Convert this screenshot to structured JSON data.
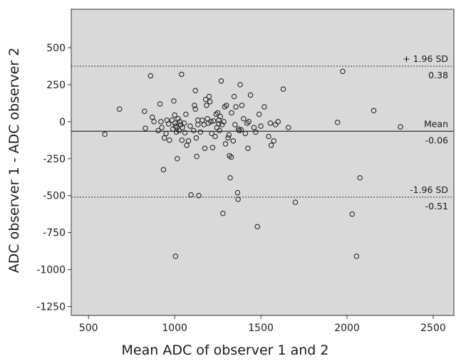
{
  "chart_data": {
    "type": "scatter",
    "title": "",
    "xlabel": "Mean ADC of observer 1 and 2",
    "ylabel": "ADC observer 1 - ADC observer 2",
    "xlim": [
      400,
      2620
    ],
    "ylim": [
      -1310,
      760
    ],
    "x_ticks": [
      500,
      1000,
      1500,
      2000,
      2500
    ],
    "y_ticks": [
      500,
      250,
      0,
      -250,
      -500,
      -750,
      -1000,
      -1250
    ],
    "grid": false,
    "background": "#d9d9d9",
    "reference_lines": [
      {
        "name": "+ 1.96 SD",
        "value_label": "0.38",
        "y": 375,
        "style": "dotted"
      },
      {
        "name": "Mean",
        "value_label": "-0.06",
        "y": -65,
        "style": "solid"
      },
      {
        "name": "-1.96 SD",
        "value_label": "-0.51",
        "y": -510,
        "style": "dotted"
      }
    ],
    "points": [
      {
        "x": 595,
        "y": -85
      },
      {
        "x": 680,
        "y": 85
      },
      {
        "x": 825,
        "y": 70
      },
      {
        "x": 830,
        "y": -45
      },
      {
        "x": 860,
        "y": 310
      },
      {
        "x": 870,
        "y": 30
      },
      {
        "x": 880,
        "y": 0
      },
      {
        "x": 905,
        "y": -60
      },
      {
        "x": 915,
        "y": 120
      },
      {
        "x": 920,
        "y": 0
      },
      {
        "x": 925,
        "y": -40
      },
      {
        "x": 935,
        "y": -325
      },
      {
        "x": 940,
        "y": -110
      },
      {
        "x": 950,
        "y": -80
      },
      {
        "x": 955,
        "y": 10
      },
      {
        "x": 965,
        "y": -15
      },
      {
        "x": 970,
        "y": -125
      },
      {
        "x": 985,
        "y": 10
      },
      {
        "x": 990,
        "y": -50
      },
      {
        "x": 995,
        "y": 140
      },
      {
        "x": 1000,
        "y": 45
      },
      {
        "x": 1002,
        "y": -10
      },
      {
        "x": 1005,
        "y": -30
      },
      {
        "x": 1010,
        "y": -70
      },
      {
        "x": 1012,
        "y": -40
      },
      {
        "x": 1015,
        "y": -250
      },
      {
        "x": 1020,
        "y": 20
      },
      {
        "x": 1025,
        "y": -60
      },
      {
        "x": 1030,
        "y": 0
      },
      {
        "x": 1035,
        "y": -20
      },
      {
        "x": 1040,
        "y": 320
      },
      {
        "x": 1042,
        "y": -125
      },
      {
        "x": 1045,
        "y": -40
      },
      {
        "x": 1055,
        "y": -10
      },
      {
        "x": 1060,
        "y": -75
      },
      {
        "x": 1065,
        "y": 50
      },
      {
        "x": 1070,
        "y": -160
      },
      {
        "x": 1080,
        "y": -130
      },
      {
        "x": 1090,
        "y": -30
      },
      {
        "x": 1095,
        "y": -495
      },
      {
        "x": 1110,
        "y": -60
      },
      {
        "x": 1115,
        "y": 110
      },
      {
        "x": 1120,
        "y": 210
      },
      {
        "x": 1120,
        "y": 85
      },
      {
        "x": 1125,
        "y": -110
      },
      {
        "x": 1128,
        "y": -235
      },
      {
        "x": 1135,
        "y": 10
      },
      {
        "x": 1140,
        "y": -500
      },
      {
        "x": 1150,
        "y": -70
      },
      {
        "x": 1160,
        "y": 10
      },
      {
        "x": 1170,
        "y": -20
      },
      {
        "x": 1175,
        "y": -180
      },
      {
        "x": 1180,
        "y": 150
      },
      {
        "x": 1185,
        "y": 110
      },
      {
        "x": 1190,
        "y": 20
      },
      {
        "x": 1195,
        "y": -10
      },
      {
        "x": 1200,
        "y": 170
      },
      {
        "x": 1205,
        "y": 135
      },
      {
        "x": 1210,
        "y": 0
      },
      {
        "x": 1215,
        "y": -80
      },
      {
        "x": 1220,
        "y": -175
      },
      {
        "x": 1225,
        "y": 5
      },
      {
        "x": 1235,
        "y": -100
      },
      {
        "x": 1240,
        "y": 50
      },
      {
        "x": 1245,
        "y": -40
      },
      {
        "x": 1250,
        "y": 60
      },
      {
        "x": 1255,
        "y": 10
      },
      {
        "x": 1260,
        "y": -60
      },
      {
        "x": 1265,
        "y": 35
      },
      {
        "x": 1270,
        "y": 275
      },
      {
        "x": 1275,
        "y": -20
      },
      {
        "x": 1280,
        "y": -620
      },
      {
        "x": 1285,
        "y": 0
      },
      {
        "x": 1290,
        "y": 100
      },
      {
        "x": 1295,
        "y": -150
      },
      {
        "x": 1300,
        "y": 110
      },
      {
        "x": 1310,
        "y": -110
      },
      {
        "x": 1315,
        "y": -90
      },
      {
        "x": 1318,
        "y": -230
      },
      {
        "x": 1322,
        "y": -380
      },
      {
        "x": 1328,
        "y": -240
      },
      {
        "x": 1330,
        "y": 60
      },
      {
        "x": 1340,
        "y": -130
      },
      {
        "x": 1345,
        "y": 170
      },
      {
        "x": 1350,
        "y": -20
      },
      {
        "x": 1355,
        "y": 100
      },
      {
        "x": 1365,
        "y": -480
      },
      {
        "x": 1368,
        "y": -525
      },
      {
        "x": 1370,
        "y": -50
      },
      {
        "x": 1375,
        "y": -60
      },
      {
        "x": 1380,
        "y": 250
      },
      {
        "x": 1385,
        "y": -55
      },
      {
        "x": 1390,
        "y": 110
      },
      {
        "x": 1400,
        "y": 20
      },
      {
        "x": 1410,
        "y": -80
      },
      {
        "x": 1420,
        "y": -10
      },
      {
        "x": 1425,
        "y": -180
      },
      {
        "x": 1430,
        "y": 0
      },
      {
        "x": 1440,
        "y": 180
      },
      {
        "x": 1460,
        "y": -40
      },
      {
        "x": 1470,
        "y": -70
      },
      {
        "x": 1480,
        "y": -710
      },
      {
        "x": 1490,
        "y": 50
      },
      {
        "x": 1500,
        "y": -30
      },
      {
        "x": 1520,
        "y": 100
      },
      {
        "x": 1545,
        "y": -100
      },
      {
        "x": 1555,
        "y": -10
      },
      {
        "x": 1560,
        "y": -160
      },
      {
        "x": 1575,
        "y": -130
      },
      {
        "x": 1585,
        "y": -20
      },
      {
        "x": 1600,
        "y": 0
      },
      {
        "x": 1630,
        "y": 220
      },
      {
        "x": 1660,
        "y": -40
      },
      {
        "x": 1700,
        "y": -545
      },
      {
        "x": 1945,
        "y": -5
      },
      {
        "x": 1975,
        "y": 340
      },
      {
        "x": 2030,
        "y": -625
      },
      {
        "x": 2055,
        "y": -910
      },
      {
        "x": 2075,
        "y": -380
      },
      {
        "x": 2155,
        "y": 75
      },
      {
        "x": 2310,
        "y": -35
      },
      {
        "x": 1005,
        "y": -910
      },
      {
        "x": 1135,
        "y": -20
      },
      {
        "x": 1255,
        "y": -15
      }
    ]
  }
}
